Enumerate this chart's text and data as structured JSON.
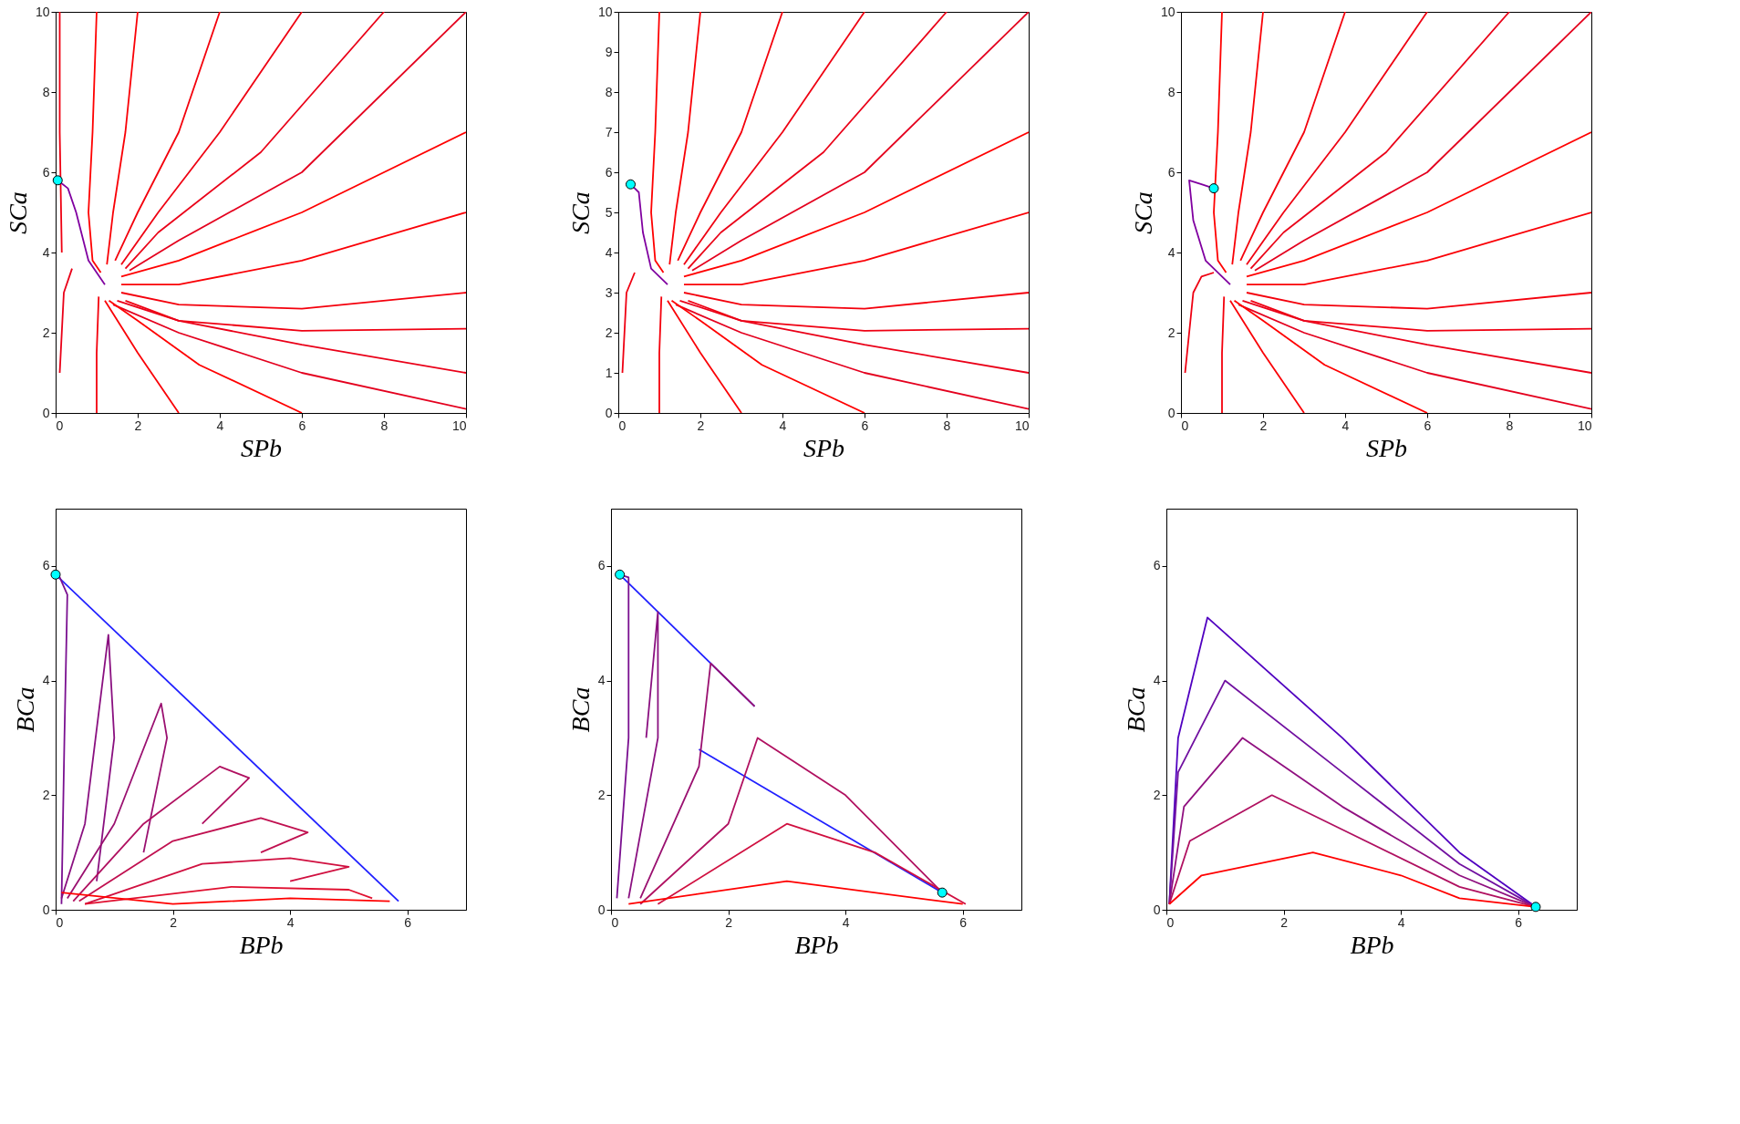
{
  "chart_data": [
    {
      "type": "line",
      "xlabel": "SPb",
      "ylabel": "SCa",
      "xlim": [
        0,
        10
      ],
      "ylim": [
        0,
        10
      ],
      "xticks": [
        0,
        2,
        4,
        6,
        8,
        10
      ],
      "yticks": [
        0,
        2,
        4,
        6,
        8,
        10
      ],
      "grid": false,
      "series": [
        {
          "color": "#ff0000",
          "x": [
            1,
            0.9,
            0.8,
            0.9,
            1.1
          ],
          "values": [
            10,
            7,
            5,
            3.8,
            3.5
          ]
        },
        {
          "color": "#fa0006",
          "x": [
            2,
            1.7,
            1.4,
            1.25
          ],
          "values": [
            10,
            7,
            5,
            3.7
          ]
        },
        {
          "color": "#f4000c",
          "x": [
            4,
            3,
            2,
            1.45
          ],
          "values": [
            10,
            7,
            5,
            3.8
          ]
        },
        {
          "color": "#ef0012",
          "x": [
            6,
            4,
            2.5,
            1.6
          ],
          "values": [
            10,
            7,
            5,
            3.7
          ]
        },
        {
          "color": "#ea0018",
          "x": [
            8,
            5,
            2.5,
            1.7
          ],
          "values": [
            10,
            6.5,
            4.5,
            3.6
          ]
        },
        {
          "color": "#e4001e",
          "x": [
            10,
            6,
            3,
            1.8
          ],
          "values": [
            10,
            6,
            4.3,
            3.55
          ]
        },
        {
          "color": "#ff0000",
          "x": [
            10,
            6,
            3,
            1.6
          ],
          "values": [
            7,
            5,
            3.8,
            3.4
          ]
        },
        {
          "color": "#fa0006",
          "x": [
            10,
            6,
            3,
            1.6
          ],
          "values": [
            5,
            3.8,
            3.2,
            3.2
          ]
        },
        {
          "color": "#f4000c",
          "x": [
            10,
            6,
            3,
            1.6
          ],
          "values": [
            3,
            2.6,
            2.7,
            3.0
          ]
        },
        {
          "color": "#ef0012",
          "x": [
            10,
            6,
            3,
            1.7
          ],
          "values": [
            2.1,
            2.05,
            2.3,
            2.8
          ]
        },
        {
          "color": "#ea0018",
          "x": [
            10,
            6,
            3,
            1.5
          ],
          "values": [
            1,
            1.7,
            2.3,
            2.8
          ]
        },
        {
          "color": "#e4001e",
          "x": [
            10,
            6,
            3,
            1.4
          ],
          "values": [
            0.1,
            1,
            2,
            2.7
          ]
        },
        {
          "color": "#ff0000",
          "x": [
            6,
            3.5,
            2,
            1.3
          ],
          "values": [
            0,
            1.2,
            2.3,
            2.8
          ]
        },
        {
          "color": "#fa0006",
          "x": [
            3,
            2,
            1.2
          ],
          "values": [
            0,
            1.5,
            2.8
          ]
        },
        {
          "color": "#f4000c",
          "x": [
            1,
            1,
            1.05
          ],
          "values": [
            0,
            1.5,
            2.9
          ]
        },
        {
          "color": "#ef0012",
          "x": [
            0.1,
            0.1,
            0.15
          ],
          "values": [
            10,
            7,
            4
          ]
        },
        {
          "color": "#ea0018",
          "x": [
            0.1,
            0.2,
            0.4
          ],
          "values": [
            1,
            3,
            3.6
          ]
        },
        {
          "color": "#8000a0",
          "x": [
            1.2,
            0.8,
            0.5,
            0.3,
            0.05
          ],
          "values": [
            3.2,
            3.8,
            5,
            5.6,
            5.8
          ]
        },
        {
          "type": "scatter",
          "marker": "circle",
          "color": "#00ffff",
          "x": [
            0.05
          ],
          "values": [
            5.8
          ]
        }
      ]
    },
    {
      "type": "line",
      "xlabel": "SPb",
      "ylabel": "SCa",
      "xlim": [
        0,
        10
      ],
      "ylim": [
        0,
        10
      ],
      "xticks": [
        0,
        2,
        4,
        6,
        8,
        10
      ],
      "yticks": [
        0,
        1,
        2,
        3,
        4,
        5,
        6,
        7,
        8,
        9,
        10
      ],
      "grid": false,
      "series": [
        {
          "color": "#ff0000",
          "x": [
            1,
            0.9,
            0.8,
            0.9,
            1.1
          ],
          "values": [
            10,
            7,
            5,
            3.8,
            3.5
          ]
        },
        {
          "color": "#fa0006",
          "x": [
            2,
            1.7,
            1.4,
            1.25
          ],
          "values": [
            10,
            7,
            5,
            3.7
          ]
        },
        {
          "color": "#f4000c",
          "x": [
            4,
            3,
            2,
            1.45
          ],
          "values": [
            10,
            7,
            5,
            3.8
          ]
        },
        {
          "color": "#ef0012",
          "x": [
            6,
            4,
            2.5,
            1.6
          ],
          "values": [
            10,
            7,
            5,
            3.7
          ]
        },
        {
          "color": "#ea0018",
          "x": [
            8,
            5,
            2.5,
            1.7
          ],
          "values": [
            10,
            6.5,
            4.5,
            3.6
          ]
        },
        {
          "color": "#e4001e",
          "x": [
            10,
            6,
            3,
            1.8
          ],
          "values": [
            10,
            6,
            4.3,
            3.55
          ]
        },
        {
          "color": "#ff0000",
          "x": [
            10,
            6,
            3,
            1.6
          ],
          "values": [
            7,
            5,
            3.8,
            3.4
          ]
        },
        {
          "color": "#fa0006",
          "x": [
            10,
            6,
            3,
            1.6
          ],
          "values": [
            5,
            3.8,
            3.2,
            3.2
          ]
        },
        {
          "color": "#f4000c",
          "x": [
            10,
            6,
            3,
            1.6
          ],
          "values": [
            3,
            2.6,
            2.7,
            3.0
          ]
        },
        {
          "color": "#ef0012",
          "x": [
            10,
            6,
            3,
            1.7
          ],
          "values": [
            2.1,
            2.05,
            2.3,
            2.8
          ]
        },
        {
          "color": "#ea0018",
          "x": [
            10,
            6,
            3,
            1.5
          ],
          "values": [
            1,
            1.7,
            2.3,
            2.8
          ]
        },
        {
          "color": "#e4001e",
          "x": [
            10,
            6,
            3,
            1.4
          ],
          "values": [
            0.1,
            1,
            2,
            2.7
          ]
        },
        {
          "color": "#ff0000",
          "x": [
            6,
            3.5,
            2,
            1.3
          ],
          "values": [
            0,
            1.2,
            2.3,
            2.8
          ]
        },
        {
          "color": "#fa0006",
          "x": [
            3,
            2,
            1.2
          ],
          "values": [
            0,
            1.5,
            2.8
          ]
        },
        {
          "color": "#f4000c",
          "x": [
            1,
            1,
            1.05
          ],
          "values": [
            0,
            1.5,
            2.9
          ]
        },
        {
          "color": "#ef0012",
          "x": [
            0.1,
            0.2,
            0.4
          ],
          "values": [
            1,
            3,
            3.5
          ]
        },
        {
          "color": "#8000a0",
          "x": [
            1.2,
            0.8,
            0.6,
            0.5,
            0.3
          ],
          "values": [
            3.2,
            3.6,
            4.5,
            5.5,
            5.7
          ]
        },
        {
          "type": "scatter",
          "marker": "circle",
          "color": "#00ffff",
          "x": [
            0.3
          ],
          "values": [
            5.7
          ]
        }
      ]
    },
    {
      "type": "line",
      "xlabel": "SPb",
      "ylabel": "SCa",
      "xlim": [
        0,
        10
      ],
      "ylim": [
        0,
        10
      ],
      "xticks": [
        0,
        2,
        4,
        6,
        8,
        10
      ],
      "yticks": [
        0,
        2,
        4,
        6,
        8,
        10
      ],
      "grid": false,
      "series": [
        {
          "color": "#ff0000",
          "x": [
            1,
            0.9,
            0.8,
            0.9,
            1.1
          ],
          "values": [
            10,
            7,
            5,
            3.8,
            3.5
          ]
        },
        {
          "color": "#fa0006",
          "x": [
            2,
            1.7,
            1.4,
            1.25
          ],
          "values": [
            10,
            7,
            5,
            3.7
          ]
        },
        {
          "color": "#f4000c",
          "x": [
            4,
            3,
            2,
            1.45
          ],
          "values": [
            10,
            7,
            5,
            3.8
          ]
        },
        {
          "color": "#ef0012",
          "x": [
            6,
            4,
            2.5,
            1.6
          ],
          "values": [
            10,
            7,
            5,
            3.7
          ]
        },
        {
          "color": "#ea0018",
          "x": [
            8,
            5,
            2.5,
            1.7
          ],
          "values": [
            10,
            6.5,
            4.5,
            3.6
          ]
        },
        {
          "color": "#e4001e",
          "x": [
            10,
            6,
            3,
            1.8
          ],
          "values": [
            10,
            6,
            4.3,
            3.55
          ]
        },
        {
          "color": "#ff0000",
          "x": [
            10,
            6,
            3,
            1.6
          ],
          "values": [
            7,
            5,
            3.8,
            3.4
          ]
        },
        {
          "color": "#fa0006",
          "x": [
            10,
            6,
            3,
            1.6
          ],
          "values": [
            5,
            3.8,
            3.2,
            3.2
          ]
        },
        {
          "color": "#f4000c",
          "x": [
            10,
            6,
            3,
            1.6
          ],
          "values": [
            3,
            2.6,
            2.7,
            3.0
          ]
        },
        {
          "color": "#ef0012",
          "x": [
            10,
            6,
            3,
            1.7
          ],
          "values": [
            2.1,
            2.05,
            2.3,
            2.8
          ]
        },
        {
          "color": "#ea0018",
          "x": [
            10,
            6,
            3,
            1.5
          ],
          "values": [
            1,
            1.7,
            2.3,
            2.8
          ]
        },
        {
          "color": "#e4001e",
          "x": [
            10,
            6,
            3,
            1.4
          ],
          "values": [
            0.1,
            1,
            2,
            2.7
          ]
        },
        {
          "color": "#ff0000",
          "x": [
            6,
            3.5,
            2,
            1.3
          ],
          "values": [
            0,
            1.2,
            2.3,
            2.8
          ]
        },
        {
          "color": "#fa0006",
          "x": [
            3,
            2,
            1.2
          ],
          "values": [
            0,
            1.5,
            2.8
          ]
        },
        {
          "color": "#f4000c",
          "x": [
            1,
            1,
            1.05
          ],
          "values": [
            0,
            1.5,
            2.9
          ]
        },
        {
          "color": "#ef0012",
          "x": [
            0.1,
            0.3,
            0.5,
            0.8
          ],
          "values": [
            1,
            3,
            3.4,
            3.5
          ]
        },
        {
          "color": "#8000a0",
          "x": [
            1.2,
            0.6,
            0.3,
            0.2,
            0.5,
            0.8
          ],
          "values": [
            3.2,
            3.8,
            4.8,
            5.8,
            5.7,
            5.6
          ]
        },
        {
          "type": "scatter",
          "marker": "circle",
          "color": "#00ffff",
          "x": [
            0.8
          ],
          "values": [
            5.6
          ]
        }
      ]
    },
    {
      "type": "line",
      "xlabel": "BPb",
      "ylabel": "BCa",
      "xlim": [
        0,
        7
      ],
      "ylim": [
        0,
        7
      ],
      "xticks": [
        0,
        2,
        4,
        6
      ],
      "yticks": [
        0,
        2,
        4,
        6
      ],
      "grid": false,
      "series": [
        {
          "color": "#2020ff",
          "x": [
            0,
            5.85
          ],
          "values": [
            5.85,
            0.15
          ]
        },
        {
          "color": "#7a1090",
          "x": [
            0.1,
            0.15,
            0.2,
            0.05
          ],
          "values": [
            0.1,
            3,
            5.5,
            5.85
          ]
        },
        {
          "color": "#8a1080",
          "x": [
            0.1,
            0.5,
            0.9,
            1,
            0.7
          ],
          "values": [
            0.2,
            1.5,
            4.8,
            3,
            0.5
          ]
        },
        {
          "color": "#9a1070",
          "x": [
            0.2,
            1,
            1.8,
            1.9,
            1.5
          ],
          "values": [
            0.2,
            1.5,
            3.6,
            3,
            1
          ]
        },
        {
          "color": "#b01060",
          "x": [
            0.3,
            1.5,
            2.8,
            3.3,
            2.5
          ],
          "values": [
            0.15,
            1.5,
            2.5,
            2.3,
            1.5
          ]
        },
        {
          "color": "#c01050",
          "x": [
            0.4,
            2,
            3.5,
            4.3,
            3.5
          ],
          "values": [
            0.15,
            1.2,
            1.6,
            1.35,
            1
          ]
        },
        {
          "color": "#d01040",
          "x": [
            0.5,
            2.5,
            4,
            5,
            4
          ],
          "values": [
            0.1,
            0.8,
            0.9,
            0.75,
            0.5
          ]
        },
        {
          "color": "#e01030",
          "x": [
            0.5,
            3,
            5,
            5.4
          ],
          "values": [
            0.1,
            0.4,
            0.35,
            0.2
          ]
        },
        {
          "color": "#ff0000",
          "x": [
            0.1,
            2,
            4,
            5.7
          ],
          "values": [
            0.3,
            0.1,
            0.2,
            0.15
          ]
        },
        {
          "type": "scatter",
          "marker": "circle",
          "color": "#00ffff",
          "x": [
            0
          ],
          "values": [
            5.85
          ]
        }
      ]
    },
    {
      "type": "line",
      "xlabel": "BPb",
      "ylabel": "BCa",
      "xlim": [
        0,
        7
      ],
      "ylim": [
        0,
        7
      ],
      "xticks": [
        0,
        2,
        4,
        6
      ],
      "yticks": [
        0,
        2,
        4,
        6
      ],
      "grid": false,
      "series": [
        {
          "color": "#2020ff",
          "x": [
            0.15,
            2.45
          ],
          "values": [
            5.85,
            3.55
          ]
        },
        {
          "color": "#2020ff",
          "x": [
            1.5,
            5.65
          ],
          "values": [
            2.8,
            0.3
          ]
        },
        {
          "color": "#7a1090",
          "x": [
            0.1,
            0.3,
            0.3,
            0.15
          ],
          "values": [
            0.2,
            3,
            5.8,
            5.85
          ]
        },
        {
          "color": "#8a1080",
          "x": [
            0.3,
            0.8,
            0.8,
            0.6
          ],
          "values": [
            0.2,
            3,
            5.2,
            3
          ]
        },
        {
          "color": "#9a1070",
          "x": [
            0.5,
            1.5,
            1.7,
            2.45
          ],
          "values": [
            0.2,
            2.5,
            4.3,
            3.55
          ]
        },
        {
          "color": "#b01060",
          "x": [
            0.5,
            2,
            2.5,
            4,
            5.65
          ],
          "values": [
            0.1,
            1.5,
            3,
            2,
            0.3
          ]
        },
        {
          "color": "#d01040",
          "x": [
            0.8,
            3,
            4.5,
            6.05
          ],
          "values": [
            0.1,
            1.5,
            1,
            0.1
          ]
        },
        {
          "color": "#ff0000",
          "x": [
            0.3,
            3,
            6
          ],
          "values": [
            0.1,
            0.5,
            0.1
          ]
        },
        {
          "type": "scatter",
          "marker": "circle",
          "color": "#00ffff",
          "x": [
            0.15,
            5.65
          ],
          "values": [
            5.85,
            0.3
          ]
        }
      ]
    },
    {
      "type": "line",
      "xlabel": "BPb",
      "ylabel": "BCa",
      "xlim": [
        0,
        7
      ],
      "ylim": [
        0,
        7
      ],
      "xticks": [
        0,
        2,
        4,
        6
      ],
      "yticks": [
        0,
        2,
        4,
        6
      ],
      "grid": false,
      "series": [
        {
          "color": "#5000c0",
          "x": [
            0.05,
            0.2,
            0.7,
            3,
            5,
            6.3
          ],
          "values": [
            0.1,
            3,
            5.1,
            3,
            1,
            0.05
          ]
        },
        {
          "color": "#7010a0",
          "x": [
            0.05,
            0.2,
            1,
            3,
            5,
            6.3
          ],
          "values": [
            0.1,
            2.4,
            4,
            2.4,
            0.8,
            0.05
          ]
        },
        {
          "color": "#901080",
          "x": [
            0.05,
            0.3,
            1.3,
            3,
            5,
            6.3
          ],
          "values": [
            0.1,
            1.8,
            3,
            1.8,
            0.6,
            0.05
          ]
        },
        {
          "color": "#b01060",
          "x": [
            0.05,
            0.4,
            1.8,
            3,
            5,
            6.3
          ],
          "values": [
            0.1,
            1.2,
            2,
            1.4,
            0.4,
            0.05
          ]
        },
        {
          "color": "#ff0000",
          "x": [
            0.05,
            0.6,
            2.5,
            4,
            5,
            6.3
          ],
          "values": [
            0.1,
            0.6,
            1,
            0.6,
            0.2,
            0.05
          ]
        },
        {
          "type": "scatter",
          "marker": "circle",
          "color": "#00ffff",
          "x": [
            6.3
          ],
          "values": [
            0.05
          ]
        }
      ]
    }
  ]
}
